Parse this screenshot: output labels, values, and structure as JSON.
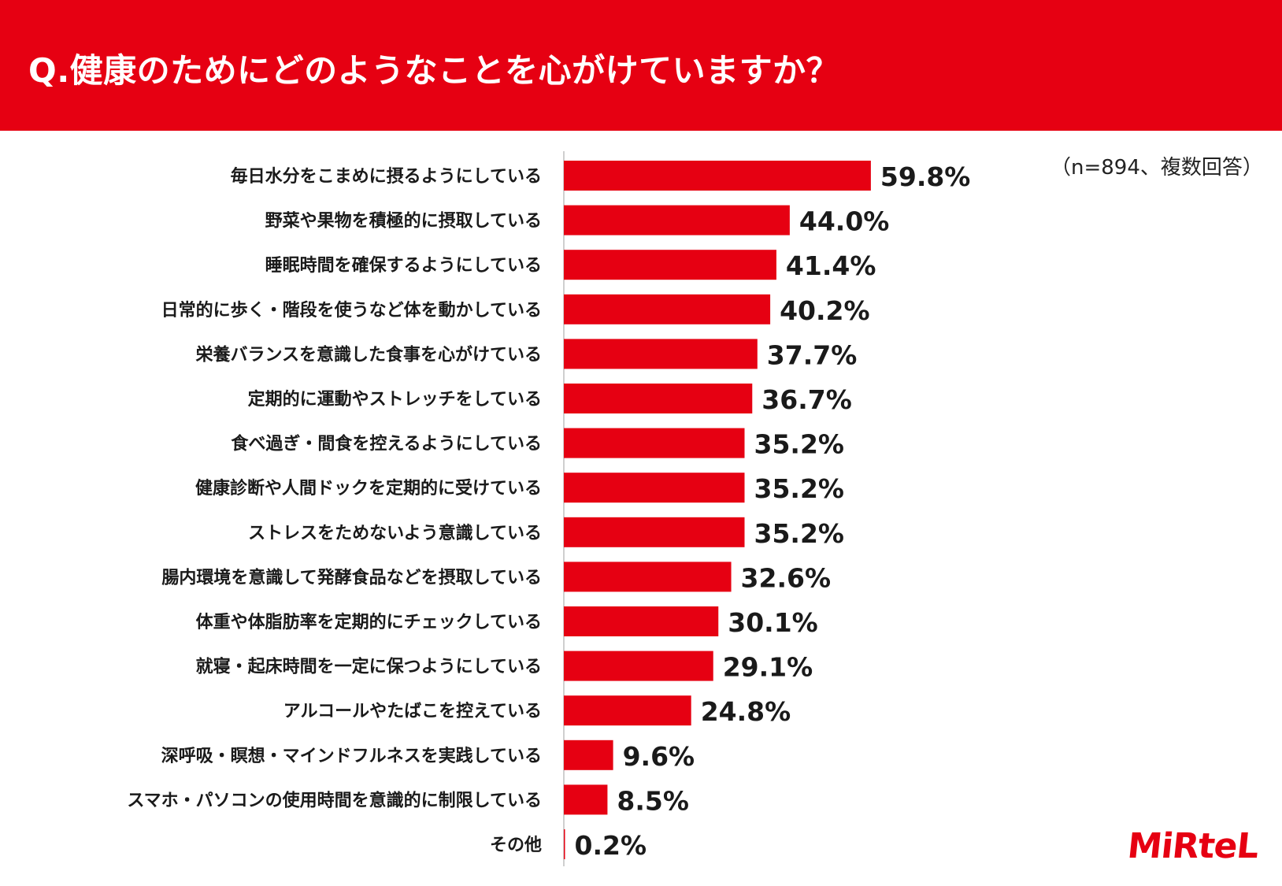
{
  "header": {
    "title": "Q.健康のためにどのようなことを心がけていますか？"
  },
  "note": "（n=894、複数回答）",
  "logo": "MiRteL",
  "colors": {
    "accent": "#e60012",
    "bar": "#e60012",
    "text": "#1a1a1a"
  },
  "chart_data": {
    "type": "bar",
    "orientation": "horizontal",
    "categories": [
      "毎日水分をこまめに摂るようにしている",
      "野菜や果物を積極的に摂取している",
      "睡眠時間を確保するようにしている",
      "日常的に歩く・階段を使うなど体を動かしている",
      "栄養バランスを意識した食事を心がけている",
      "定期的に運動やストレッチをしている",
      "食べ過ぎ・間食を控えるようにしている",
      "健康診断や人間ドックを定期的に受けている",
      "ストレスをためないよう意識している",
      "腸内環境を意識して発酵食品などを摂取している",
      "体重や体脂肪率を定期的にチェックしている",
      "就寝・起床時間を一定に保つようにしている",
      "アルコールやたばこを控えている",
      "深呼吸・瞑想・マインドフルネスを実践している",
      "スマホ・パソコンの使用時間を意識的に制限している",
      "その他"
    ],
    "values": [
      59.8,
      44.0,
      41.4,
      40.2,
      37.7,
      36.7,
      35.2,
      35.2,
      35.2,
      32.6,
      30.1,
      29.1,
      24.8,
      9.6,
      8.5,
      0.2
    ],
    "value_labels": [
      "59.8%",
      "44.0%",
      "41.4%",
      "40.2%",
      "37.7%",
      "36.7%",
      "35.2%",
      "35.2%",
      "35.2%",
      "32.6%",
      "30.1%",
      "29.1%",
      "24.8%",
      "9.6%",
      "8.5%",
      "0.2%"
    ],
    "unit": "%",
    "grid": false,
    "legend": "none"
  }
}
